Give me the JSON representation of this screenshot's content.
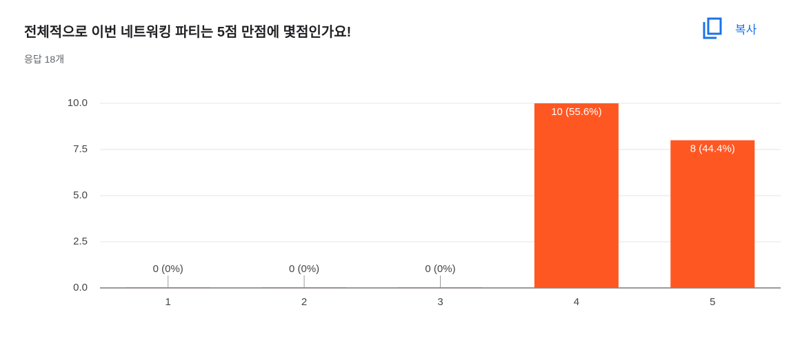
{
  "header": {
    "title": "전체적으로 이번 네트워킹 파티는 5점 만점에 몇점인가요!",
    "subtitle": "응답 18개",
    "copy_button": "복사"
  },
  "chart_data": {
    "type": "bar",
    "categories": [
      "1",
      "2",
      "3",
      "4",
      "5"
    ],
    "values": [
      0,
      0,
      0,
      10,
      8
    ],
    "value_labels": [
      "0 (0%)",
      "0 (0%)",
      "0 (0%)",
      "10 (55.6%)",
      "8 (44.4%)"
    ],
    "color": "#ff5722",
    "ylim": [
      0,
      10
    ],
    "yticks": [
      {
        "value": 0,
        "label": "0.0"
      },
      {
        "value": 2.5,
        "label": "2.5"
      },
      {
        "value": 5,
        "label": "5.0"
      },
      {
        "value": 7.5,
        "label": "7.5"
      },
      {
        "value": 10,
        "label": "10.0"
      }
    ],
    "grid": true
  }
}
